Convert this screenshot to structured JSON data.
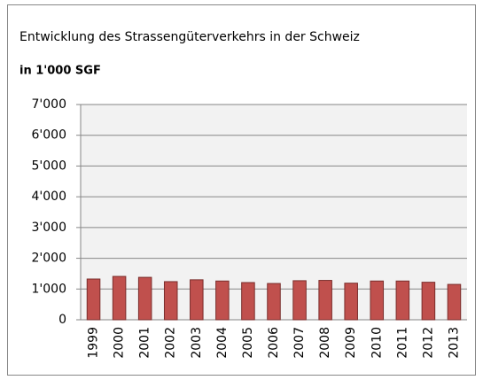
{
  "chart_data": {
    "type": "bar",
    "title": "Entwicklung des Strassengüterverkehrs in der Schweiz",
    "subtitle": "in 1'000 SGF",
    "categories": [
      "1999",
      "2000",
      "2001",
      "2002",
      "2003",
      "2004",
      "2005",
      "2006",
      "2007",
      "2008",
      "2009",
      "2010",
      "2011",
      "2012",
      "2013"
    ],
    "values": [
      1325,
      1410,
      1380,
      1240,
      1300,
      1260,
      1210,
      1180,
      1270,
      1280,
      1190,
      1260,
      1260,
      1220,
      1150
    ],
    "color": "#c0504d",
    "ylim": [
      0,
      7000
    ],
    "yticks": [
      0,
      {
        "value": 1000,
        "label": "1'000"
      },
      {
        "value": 2000,
        "label": "2'000"
      },
      {
        "value": 3000,
        "label": "3'000"
      },
      {
        "value": 4000,
        "label": "4'000"
      },
      {
        "value": 5000,
        "label": "5'000"
      },
      {
        "value": 6000,
        "label": "6'000"
      },
      {
        "value": 7000,
        "label": "7'000"
      }
    ],
    "grid": true
  }
}
